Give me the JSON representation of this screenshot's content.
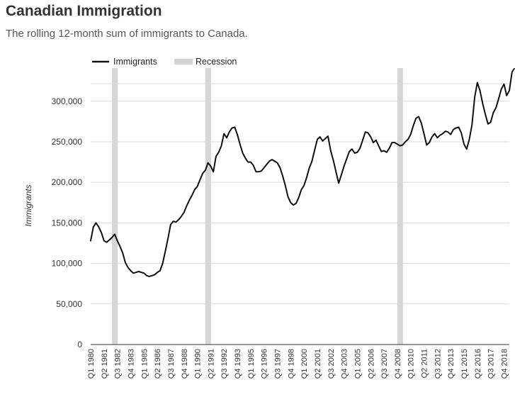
{
  "header": {
    "title": "Canadian Immigration",
    "subtitle": "The rolling 12-month sum of immigrants to Canada."
  },
  "chart_data": {
    "type": "line",
    "title": "Canadian Immigration",
    "subtitle": "The rolling 12-month sum of immigrants to Canada.",
    "xlabel": "",
    "ylabel": "Immigrants",
    "ylim": [
      0,
      340000
    ],
    "y_ticks": [
      0,
      50000,
      100000,
      150000,
      200000,
      250000,
      300000
    ],
    "y_tick_labels": [
      "0",
      "50,000",
      "100,000",
      "150,000",
      "200,000",
      "250,000",
      "300,000"
    ],
    "x_range": [
      1980.0,
      2019.25
    ],
    "x_ticks": [
      {
        "label": "Q1 1980",
        "x": 1980.0
      },
      {
        "label": "Q2 1981",
        "x": 1981.25
      },
      {
        "label": "Q3 1982",
        "x": 1982.5
      },
      {
        "label": "Q4 1983",
        "x": 1983.75
      },
      {
        "label": "Q1 1985",
        "x": 1985.0
      },
      {
        "label": "Q2 1986",
        "x": 1986.25
      },
      {
        "label": "Q3 1987",
        "x": 1987.5
      },
      {
        "label": "Q4 1988",
        "x": 1988.75
      },
      {
        "label": "Q1 1990",
        "x": 1990.0
      },
      {
        "label": "Q2 1991",
        "x": 1991.25
      },
      {
        "label": "Q3 1992",
        "x": 1992.5
      },
      {
        "label": "Q4 1993",
        "x": 1993.75
      },
      {
        "label": "Q1 1995",
        "x": 1995.0
      },
      {
        "label": "Q2 1996",
        "x": 1996.25
      },
      {
        "label": "Q3 1997",
        "x": 1997.5
      },
      {
        "label": "Q4 1998",
        "x": 1998.75
      },
      {
        "label": "Q1 2000",
        "x": 2000.0
      },
      {
        "label": "Q2 2001",
        "x": 2001.25
      },
      {
        "label": "Q3 2002",
        "x": 2002.5
      },
      {
        "label": "Q4 2003",
        "x": 2003.75
      },
      {
        "label": "Q1 2005",
        "x": 2005.0
      },
      {
        "label": "Q2 2006",
        "x": 2006.25
      },
      {
        "label": "Q3 2007",
        "x": 2007.5
      },
      {
        "label": "Q4 2008",
        "x": 2008.75
      },
      {
        "label": "Q1 2010",
        "x": 2010.0
      },
      {
        "label": "Q2 2011",
        "x": 2011.25
      },
      {
        "label": "Q3 2012",
        "x": 2012.5
      },
      {
        "label": "Q4 2013",
        "x": 2013.75
      },
      {
        "label": "Q1 2015",
        "x": 2015.0
      },
      {
        "label": "Q2 2016",
        "x": 2016.25
      },
      {
        "label": "Q3 2017",
        "x": 2017.5
      },
      {
        "label": "Q4 2018",
        "x": 2018.75
      }
    ],
    "legend": [
      {
        "label": "Immigrants",
        "kind": "line",
        "color": "#111111"
      },
      {
        "label": "Recession",
        "kind": "band",
        "color": "#d3d3d3"
      }
    ],
    "recessions": [
      {
        "start": 1982.0,
        "end": 1982.5
      },
      {
        "start": 1990.75,
        "end": 1991.25
      },
      {
        "start": 2008.75,
        "end": 2009.25
      }
    ],
    "series": [
      {
        "name": "Immigrants",
        "color": "#111111",
        "points": [
          [
            1980.0,
            128000
          ],
          [
            1980.25,
            145000
          ],
          [
            1980.5,
            150000
          ],
          [
            1980.75,
            145000
          ],
          [
            1981.0,
            138000
          ],
          [
            1981.25,
            128000
          ],
          [
            1981.5,
            126000
          ],
          [
            1981.75,
            129000
          ],
          [
            1982.0,
            132000
          ],
          [
            1982.25,
            136000
          ],
          [
            1982.5,
            128000
          ],
          [
            1982.75,
            121000
          ],
          [
            1983.0,
            113000
          ],
          [
            1983.25,
            101000
          ],
          [
            1983.5,
            95000
          ],
          [
            1983.75,
            91000
          ],
          [
            1984.0,
            88000
          ],
          [
            1984.25,
            89000
          ],
          [
            1984.5,
            90000
          ],
          [
            1984.75,
            89000
          ],
          [
            1985.0,
            88000
          ],
          [
            1985.25,
            85000
          ],
          [
            1985.5,
            84000
          ],
          [
            1985.75,
            85000
          ],
          [
            1986.0,
            86000
          ],
          [
            1986.25,
            89000
          ],
          [
            1986.5,
            91000
          ],
          [
            1986.75,
            100000
          ],
          [
            1987.0,
            115000
          ],
          [
            1987.25,
            131000
          ],
          [
            1987.5,
            148000
          ],
          [
            1987.75,
            152000
          ],
          [
            1988.0,
            151000
          ],
          [
            1988.25,
            154000
          ],
          [
            1988.5,
            158000
          ],
          [
            1988.75,
            163000
          ],
          [
            1989.0,
            171000
          ],
          [
            1989.25,
            178000
          ],
          [
            1989.5,
            184000
          ],
          [
            1989.75,
            191000
          ],
          [
            1990.0,
            195000
          ],
          [
            1990.25,
            203000
          ],
          [
            1990.5,
            211000
          ],
          [
            1990.75,
            215000
          ],
          [
            1991.0,
            224000
          ],
          [
            1991.25,
            220000
          ],
          [
            1991.5,
            213000
          ],
          [
            1991.75,
            232000
          ],
          [
            1992.0,
            237000
          ],
          [
            1992.25,
            245000
          ],
          [
            1992.5,
            260000
          ],
          [
            1992.75,
            255000
          ],
          [
            1993.0,
            262000
          ],
          [
            1993.25,
            267000
          ],
          [
            1993.5,
            268000
          ],
          [
            1993.75,
            259000
          ],
          [
            1994.0,
            247000
          ],
          [
            1994.25,
            236000
          ],
          [
            1994.5,
            230000
          ],
          [
            1994.75,
            225000
          ],
          [
            1995.0,
            225000
          ],
          [
            1995.25,
            221000
          ],
          [
            1995.5,
            213000
          ],
          [
            1995.75,
            213000
          ],
          [
            1996.0,
            214000
          ],
          [
            1996.25,
            218000
          ],
          [
            1996.5,
            222000
          ],
          [
            1996.75,
            226000
          ],
          [
            1997.0,
            228000
          ],
          [
            1997.25,
            226000
          ],
          [
            1997.5,
            224000
          ],
          [
            1997.75,
            218000
          ],
          [
            1998.0,
            208000
          ],
          [
            1998.25,
            196000
          ],
          [
            1998.5,
            182000
          ],
          [
            1998.75,
            175000
          ],
          [
            1999.0,
            172000
          ],
          [
            1999.25,
            174000
          ],
          [
            1999.5,
            181000
          ],
          [
            1999.75,
            191000
          ],
          [
            2000.0,
            196000
          ],
          [
            2000.25,
            206000
          ],
          [
            2000.5,
            218000
          ],
          [
            2000.75,
            226000
          ],
          [
            2001.0,
            240000
          ],
          [
            2001.25,
            253000
          ],
          [
            2001.5,
            256000
          ],
          [
            2001.75,
            251000
          ],
          [
            2002.0,
            254000
          ],
          [
            2002.25,
            257000
          ],
          [
            2002.5,
            239000
          ],
          [
            2002.75,
            227000
          ],
          [
            2003.0,
            213000
          ],
          [
            2003.25,
            199000
          ],
          [
            2003.5,
            209000
          ],
          [
            2003.75,
            220000
          ],
          [
            2004.0,
            229000
          ],
          [
            2004.25,
            238000
          ],
          [
            2004.5,
            241000
          ],
          [
            2004.75,
            236000
          ],
          [
            2005.0,
            237000
          ],
          [
            2005.25,
            242000
          ],
          [
            2005.5,
            252000
          ],
          [
            2005.75,
            262000
          ],
          [
            2006.0,
            261000
          ],
          [
            2006.25,
            256000
          ],
          [
            2006.5,
            249000
          ],
          [
            2006.75,
            252000
          ],
          [
            2007.0,
            245000
          ],
          [
            2007.25,
            238000
          ],
          [
            2007.5,
            239000
          ],
          [
            2007.75,
            237000
          ],
          [
            2008.0,
            242000
          ],
          [
            2008.25,
            249000
          ],
          [
            2008.5,
            249000
          ],
          [
            2008.75,
            247000
          ],
          [
            2009.0,
            245000
          ],
          [
            2009.25,
            246000
          ],
          [
            2009.5,
            250000
          ],
          [
            2009.75,
            253000
          ],
          [
            2010.0,
            259000
          ],
          [
            2010.25,
            270000
          ],
          [
            2010.5,
            279000
          ],
          [
            2010.75,
            281000
          ],
          [
            2011.0,
            273000
          ],
          [
            2011.25,
            260000
          ],
          [
            2011.5,
            246000
          ],
          [
            2011.75,
            249000
          ],
          [
            2012.0,
            256000
          ],
          [
            2012.25,
            260000
          ],
          [
            2012.5,
            255000
          ],
          [
            2012.75,
            258000
          ],
          [
            2013.0,
            260000
          ],
          [
            2013.25,
            263000
          ],
          [
            2013.5,
            262000
          ],
          [
            2013.75,
            259000
          ],
          [
            2014.0,
            265000
          ],
          [
            2014.25,
            267000
          ],
          [
            2014.5,
            268000
          ],
          [
            2014.75,
            261000
          ],
          [
            2015.0,
            247000
          ],
          [
            2015.25,
            241000
          ],
          [
            2015.5,
            253000
          ],
          [
            2015.75,
            271000
          ],
          [
            2016.0,
            305000
          ],
          [
            2016.25,
            323000
          ],
          [
            2016.5,
            313000
          ],
          [
            2016.75,
            297000
          ],
          [
            2017.0,
            284000
          ],
          [
            2017.25,
            272000
          ],
          [
            2017.5,
            274000
          ],
          [
            2017.75,
            286000
          ],
          [
            2018.0,
            292000
          ],
          [
            2018.25,
            303000
          ],
          [
            2018.5,
            315000
          ],
          [
            2018.75,
            321000
          ],
          [
            2019.0,
            307000
          ],
          [
            2019.25,
            313000
          ],
          [
            2019.5,
            336000
          ],
          [
            2019.7,
            341000
          ]
        ]
      }
    ]
  }
}
